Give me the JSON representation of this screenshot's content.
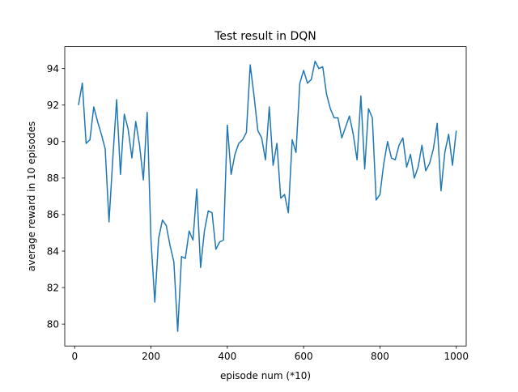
{
  "chart_data": {
    "type": "line",
    "title": "Test result in DQN",
    "xlabel": "episode num (*10)",
    "ylabel": "average reward in 10 episodes",
    "xlim": [
      -26,
      1026
    ],
    "ylim": [
      78.8,
      95.2
    ],
    "xticks": [
      0,
      200,
      400,
      600,
      800,
      1000
    ],
    "yticks": [
      80,
      82,
      84,
      86,
      88,
      90,
      92,
      94
    ],
    "grid": false,
    "legend": "none",
    "color": "#1f77b4",
    "series": [
      {
        "x": [
          10,
          20,
          30,
          40,
          50,
          60,
          70,
          80,
          90,
          100,
          110,
          120,
          130,
          140,
          150,
          160,
          170,
          180,
          190,
          200,
          210,
          220,
          230,
          240,
          250,
          260,
          270,
          280,
          290,
          300,
          310,
          320,
          330,
          340,
          350,
          360,
          370,
          380,
          390,
          400,
          410,
          420,
          430,
          440,
          450,
          460,
          470,
          480,
          490,
          500,
          510,
          520,
          530,
          540,
          550,
          560,
          570,
          580,
          590,
          600,
          610,
          620,
          630,
          640,
          650,
          660,
          670,
          680,
          690,
          700,
          710,
          720,
          730,
          740,
          750,
          760,
          770,
          780,
          790,
          800,
          810,
          820,
          830,
          840,
          850,
          860,
          870,
          880,
          890,
          900,
          910,
          920,
          930,
          940,
          950,
          960,
          970,
          980,
          990,
          1000
        ],
        "values": [
          92.0,
          93.2,
          89.9,
          90.1,
          91.9,
          91.1,
          90.4,
          89.6,
          85.6,
          89.1,
          92.3,
          88.2,
          91.5,
          90.7,
          89.1,
          91.1,
          89.8,
          87.9,
          91.6,
          84.6,
          81.2,
          84.7,
          85.7,
          85.4,
          84.3,
          83.4,
          79.6,
          83.7,
          83.6,
          85.1,
          84.6,
          87.4,
          83.1,
          85.1,
          86.2,
          86.1,
          84.1,
          84.5,
          84.6,
          90.9,
          88.2,
          89.3,
          89.9,
          90.1,
          90.5,
          94.2,
          92.5,
          90.6,
          90.2,
          89.0,
          91.9,
          88.7,
          89.9,
          86.9,
          87.1,
          86.1,
          90.1,
          89.4,
          93.2,
          93.9,
          93.2,
          93.4,
          94.4,
          94.0,
          94.1,
          92.6,
          91.8,
          91.3,
          91.3,
          90.2,
          90.8,
          91.4,
          90.4,
          89.0,
          92.5,
          88.5,
          91.8,
          91.3,
          86.8,
          87.1,
          88.8,
          90.0,
          89.1,
          89.0,
          89.8,
          90.2,
          88.6,
          89.3,
          88.0,
          88.6,
          89.8,
          88.4,
          88.8,
          89.6,
          91.0,
          87.3,
          89.4,
          90.4,
          88.7,
          90.6
        ]
      }
    ]
  }
}
